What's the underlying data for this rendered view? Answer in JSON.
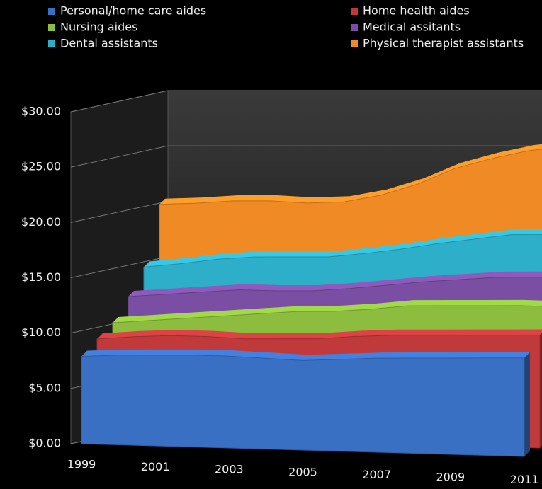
{
  "chart_data": {
    "type": "area3d",
    "categories": [
      "1999",
      null,
      "2001",
      null,
      "2003",
      null,
      "2005",
      null,
      "2007",
      null,
      "2009",
      null,
      "2011"
    ],
    "series": [
      {
        "name": "Personal/home care aides",
        "color": "#3a70c4",
        "values": [
          7.9,
          8.1,
          8.2,
          8.3,
          8.3,
          8.2,
          8.1,
          8.3,
          8.5,
          8.6,
          8.7,
          8.8,
          8.9
        ]
      },
      {
        "name": "Home health aides",
        "color": "#c0393b",
        "values": [
          8.7,
          9.0,
          9.2,
          9.2,
          9.1,
          9.2,
          9.3,
          9.6,
          9.8,
          9.9,
          10.0,
          10.1,
          10.2
        ]
      },
      {
        "name": "Nursing aides",
        "color": "#8cbd3f",
        "values": [
          9.4,
          9.7,
          10.0,
          10.3,
          10.6,
          10.9,
          11.0,
          11.3,
          11.7,
          11.8,
          11.9,
          12.0,
          12.0
        ]
      },
      {
        "name": "Medical assitants",
        "color": "#7a4fa3",
        "values": [
          11.0,
          11.3,
          11.6,
          11.9,
          11.9,
          12.0,
          12.3,
          12.7,
          13.1,
          13.4,
          13.7,
          13.8,
          13.9
        ]
      },
      {
        "name": "Dental assistants",
        "color": "#2eafc9",
        "values": [
          12.9,
          13.3,
          13.8,
          14.1,
          14.2,
          14.3,
          14.7,
          15.2,
          15.8,
          16.3,
          16.8,
          16.9,
          16.7
        ]
      },
      {
        "name": "Physical therapist assistants",
        "color": "#f08a24",
        "values": [
          17.8,
          18.0,
          18.3,
          18.4,
          18.3,
          18.5,
          19.2,
          20.3,
          21.8,
          22.8,
          23.6,
          24.1,
          24.6
        ]
      }
    ],
    "ylim": [
      0,
      30
    ],
    "yticks": [
      {
        "value": 0,
        "label": "$0.00"
      },
      {
        "value": 5,
        "label": "$5.00"
      },
      {
        "value": 10,
        "label": "$10.00"
      },
      {
        "value": 15,
        "label": "$15.00"
      },
      {
        "value": 20,
        "label": "$20.00"
      },
      {
        "value": 25,
        "label": "$25.00"
      },
      {
        "value": 30,
        "label": "$30.00"
      }
    ],
    "grid": true
  }
}
